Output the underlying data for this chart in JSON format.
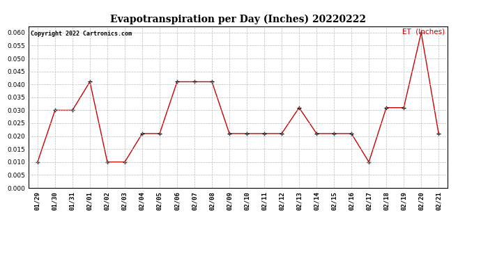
{
  "title": "Evapotranspiration per Day (Inches) 20220222",
  "copyright": "Copyright 2022 Cartronics.com",
  "legend_label": "ET  (Inches)",
  "dates": [
    "01/29",
    "01/30",
    "01/31",
    "02/01",
    "02/02",
    "02/03",
    "02/04",
    "02/05",
    "02/06",
    "02/07",
    "02/08",
    "02/09",
    "02/10",
    "02/11",
    "02/12",
    "02/13",
    "02/14",
    "02/15",
    "02/16",
    "02/17",
    "02/18",
    "02/19",
    "02/20",
    "02/21"
  ],
  "et_values": [
    0.01,
    0.03,
    0.03,
    0.041,
    0.01,
    0.01,
    0.021,
    0.021,
    0.041,
    0.041,
    0.041,
    0.021,
    0.021,
    0.021,
    0.021,
    0.031,
    0.021,
    0.021,
    0.021,
    0.01,
    0.031,
    0.031,
    0.06,
    0.021
  ],
  "line_color": "#cc0000",
  "marker_color": "#000000",
  "ylim": [
    0.0,
    0.0625
  ],
  "yticks": [
    0.0,
    0.005,
    0.01,
    0.015,
    0.02,
    0.025,
    0.03,
    0.035,
    0.04,
    0.045,
    0.05,
    0.055,
    0.06
  ],
  "background_color": "#ffffff",
  "grid_color": "#bbbbbb",
  "title_fontsize": 10,
  "copyright_fontsize": 6,
  "legend_fontsize": 7.5,
  "tick_fontsize": 6.5
}
